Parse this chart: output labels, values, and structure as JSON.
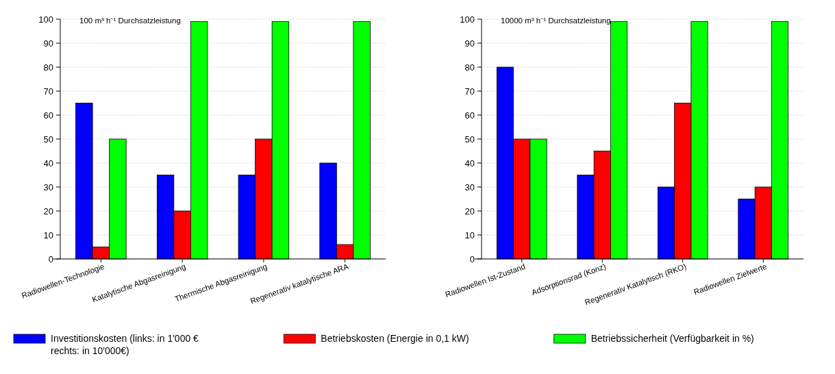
{
  "chart_data": [
    {
      "type": "bar",
      "title": "100 m³ h⁻¹ Durchsatzleistung",
      "categories": [
        "Radiowellen-Technologie",
        "Katalytische Abgasreinigung",
        "Thermische Abgasreinigung",
        "Regenerativ katalytische ARA"
      ],
      "series": [
        {
          "name": "Investitionskosten (links: in 1'000 € rechts: in 10'000€)",
          "color": "#0000ff",
          "values": [
            65,
            35,
            35,
            40
          ]
        },
        {
          "name": "Betriebskosten (Energie in 0,1 kW)",
          "color": "#ff0000",
          "values": [
            5,
            20,
            50,
            6
          ]
        },
        {
          "name": "Betriebssicherheit (Verfügbarkeit in %)",
          "color": "#00ff00",
          "values": [
            50,
            99,
            99,
            99
          ]
        }
      ],
      "ylim": [
        0,
        100
      ],
      "yticks": [
        0,
        10,
        20,
        30,
        40,
        50,
        60,
        70,
        80,
        90,
        100
      ],
      "grid": "y",
      "legend": "bottom"
    },
    {
      "type": "bar",
      "title": "10000 m³ h⁻¹ Durchsatzleistung",
      "categories": [
        "Radiowellen Ist-Zustand",
        "Adsorptionsrad (Konz)",
        "Regenerativ Katalytisch (RKO)",
        "Radiowellen Zielwerte"
      ],
      "series": [
        {
          "color": "#0000ff",
          "values": [
            80,
            35,
            30,
            25
          ]
        },
        {
          "color": "#ff0000",
          "values": [
            50,
            45,
            65,
            30
          ]
        },
        {
          "color": "#00ff00",
          "values": [
            50,
            99,
            99,
            99
          ]
        }
      ],
      "ylim": [
        0,
        100
      ],
      "yticks": [
        0,
        10,
        20,
        30,
        40,
        50,
        60,
        70,
        80,
        90,
        100
      ],
      "grid": "y",
      "legend": false
    }
  ]
}
